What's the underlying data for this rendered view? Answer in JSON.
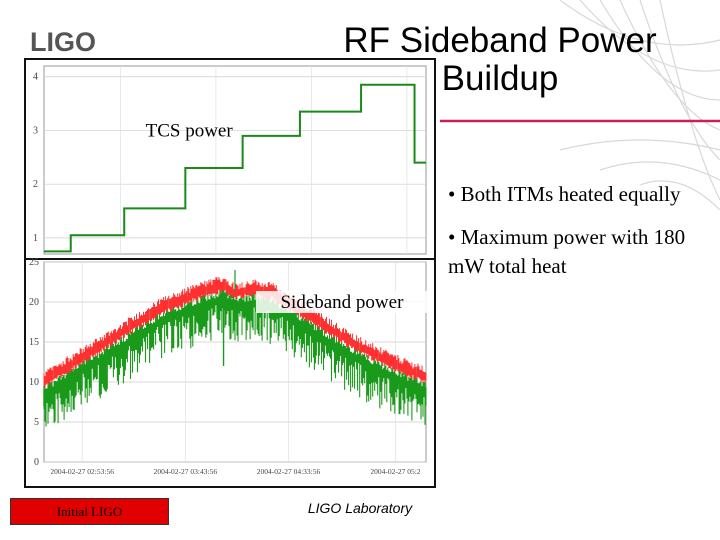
{
  "slide": {
    "logo_text": "LIGO",
    "title_line1": "RF Sideband Power",
    "title_line2": "Buildup",
    "bullets": [
      "• Both ITMs heated equally",
      "• Maximum power with 180 mW total heat"
    ],
    "footer_left": "Initial LIGO",
    "footer_center": "LIGO Laboratory",
    "colors": {
      "accent": "#c8205a",
      "footer_box": "#e00000",
      "tcs_line": "#1a8a1a",
      "sideband_green": "#1a9a1a",
      "sideband_red": "#ff3030"
    }
  },
  "chart_data": [
    {
      "type": "line",
      "annotation": "TCS power",
      "x_domain": [
        0,
        1
      ],
      "ylim": [
        0.7,
        4.2
      ],
      "y_ticks": [
        "1",
        "2",
        "3",
        "4"
      ],
      "series": [
        {
          "x": [
            0.0,
            0.07,
            0.07,
            0.21,
            0.21,
            0.37,
            0.37,
            0.52,
            0.52,
            0.67,
            0.67,
            0.83,
            0.83,
            0.97,
            0.97,
            1.0
          ],
          "values": [
            0.75,
            0.75,
            1.05,
            1.05,
            1.55,
            1.55,
            2.3,
            2.3,
            2.9,
            2.9,
            3.35,
            3.35,
            3.85,
            3.85,
            2.4,
            2.4
          ]
        }
      ]
    },
    {
      "type": "area",
      "annotation": "Sideband power",
      "ylim": [
        0,
        25
      ],
      "y_ticks": [
        "0",
        "5",
        "10",
        "15",
        "20",
        "25"
      ],
      "x_tick_labels": [
        "2004-02-27 02:53:56",
        "2004-02-27 03:43:56",
        "2004-02-27 04:33:56",
        "2004-02-27 05:2"
      ],
      "x_tick_positions": [
        0.1,
        0.37,
        0.64,
        0.92
      ],
      "envelope": {
        "x": [
          0.0,
          0.1,
          0.2,
          0.3,
          0.4,
          0.47,
          0.5,
          0.55,
          0.6,
          0.7,
          0.8,
          0.9,
          1.0
        ],
        "values": [
          10.5,
          13.5,
          16.5,
          19.5,
          21.5,
          22.5,
          21.5,
          22.0,
          21.5,
          18.5,
          15.5,
          13.0,
          11.0
        ]
      },
      "dips": [
        {
          "x": 0.47,
          "value": 12.0
        },
        {
          "x": 0.0,
          "value": 7.0
        },
        {
          "x": 0.93,
          "value": 6.0
        }
      ],
      "spikes": [
        {
          "x": 0.5,
          "value": 24.0
        }
      ]
    }
  ]
}
